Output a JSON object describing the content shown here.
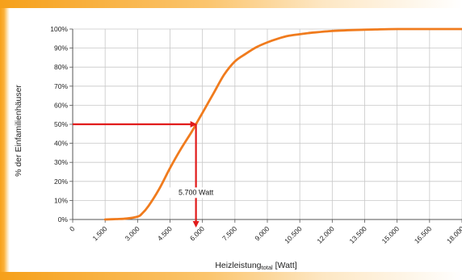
{
  "chart_data": {
    "type": "line",
    "xlabel": "Heizleistung",
    "xlabel_sub": "total",
    "xlabel_unit": " [Watt]",
    "ylabel": "% der Einfamilienhäuser",
    "xlim": [
      0,
      18000
    ],
    "ylim": [
      0,
      100
    ],
    "x_ticks": [
      0,
      1500,
      3000,
      4500,
      6000,
      7500,
      9000,
      10500,
      12000,
      13500,
      15000,
      16500,
      18000
    ],
    "x_tick_labels": [
      "0",
      "1.500",
      "3.000",
      "4.500",
      "6.000",
      "7.500",
      "9.000",
      "10.500",
      "12.000",
      "13.500",
      "15.000",
      "16.500",
      "18.000"
    ],
    "y_ticks": [
      0,
      10,
      20,
      30,
      40,
      50,
      60,
      70,
      80,
      90,
      100
    ],
    "y_tick_labels": [
      "0%",
      "10%",
      "20%",
      "30%",
      "40%",
      "50%",
      "60%",
      "70%",
      "80%",
      "90%",
      "100%"
    ],
    "grid": true,
    "series": [
      {
        "color": "#f07b1d",
        "x": [
          1500,
          2000,
          2500,
          3000,
          3200,
          3500,
          4000,
          4500,
          5000,
          5500,
          5700,
          6000,
          6500,
          7000,
          7500,
          8000,
          8500,
          9000,
          9500,
          10000,
          10500,
          11000,
          12000,
          13000,
          14000,
          15000,
          16500,
          18000
        ],
        "y": [
          0,
          0.2,
          0.5,
          1.5,
          3,
          7,
          16,
          27,
          37,
          46,
          50,
          56,
          66,
          76,
          83,
          87,
          90.5,
          93,
          95,
          96.5,
          97.3,
          98,
          99,
          99.5,
          99.8,
          100,
          100,
          100
        ]
      }
    ],
    "annotation": {
      "x": 5700,
      "y": 50,
      "label": "5.700 Watt",
      "color": "#e11b1b"
    }
  }
}
